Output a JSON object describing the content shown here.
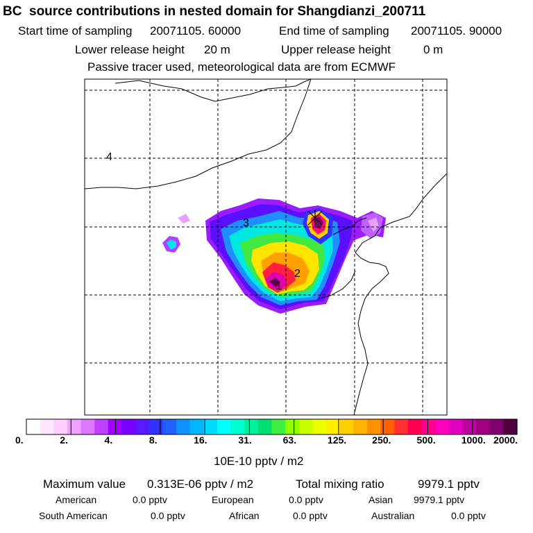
{
  "title": "BC  source contributions in nested domain for Shangdianzi_200711",
  "sampling": {
    "start_label": "Start time of sampling",
    "start_value": "20071105. 60000",
    "end_label": "End time of sampling",
    "end_value": "20071105. 90000"
  },
  "release": {
    "lower_label": "Lower release height",
    "lower_value": "20 m",
    "upper_label": "Upper release height",
    "upper_value": "0 m"
  },
  "tracer_note": "Passive tracer used, meteorological data are from ECMWF",
  "map": {
    "region_labels": [
      "1",
      "2",
      "3",
      "4"
    ],
    "receptor_marker": "Shangdianzi site (+)"
  },
  "colorbar": {
    "labels": [
      "0.",
      "2.",
      "4.",
      "8.",
      "16.",
      "31.",
      "63.",
      "125.",
      "250.",
      "500.",
      "1000.",
      "2000."
    ],
    "unit": "10E-10 pptv / m2",
    "colors": [
      "#ffffff",
      "#ffe6ff",
      "#ffccff",
      "#f0a0ff",
      "#dd77ff",
      "#c040ff",
      "#a000ff",
      "#7a00ff",
      "#5a18ff",
      "#3030ff",
      "#2060ff",
      "#1090ff",
      "#00b4ff",
      "#00dcff",
      "#00ffff",
      "#00ffd0",
      "#00f0a0",
      "#00e070",
      "#40f040",
      "#90ff00",
      "#c8ff00",
      "#eeff00",
      "#ffee00",
      "#ffd000",
      "#ffb000",
      "#ff9000",
      "#ff6000",
      "#ff3030",
      "#ff0050",
      "#ff0090",
      "#ff00c0",
      "#e000c0",
      "#c000a0",
      "#a00080",
      "#800070",
      "#500040"
    ]
  },
  "summary": {
    "max_label": "Maximum value",
    "max_value": "0.313E-06 pptv / m2",
    "total_label": "Total mixing ratio",
    "total_value": "9979.1 pptv",
    "rows": [
      [
        {
          "label": "American",
          "value": "0.0 pptv"
        },
        {
          "label": "European",
          "value": "0.0 pptv"
        },
        {
          "label": "Asian",
          "value": "9979.1 pptv"
        }
      ],
      [
        {
          "label": "South American",
          "value": "0.0 pptv"
        },
        {
          "label": "African",
          "value": "0.0 pptv"
        },
        {
          "label": "Australian",
          "value": "0.0 pptv"
        }
      ]
    ]
  }
}
